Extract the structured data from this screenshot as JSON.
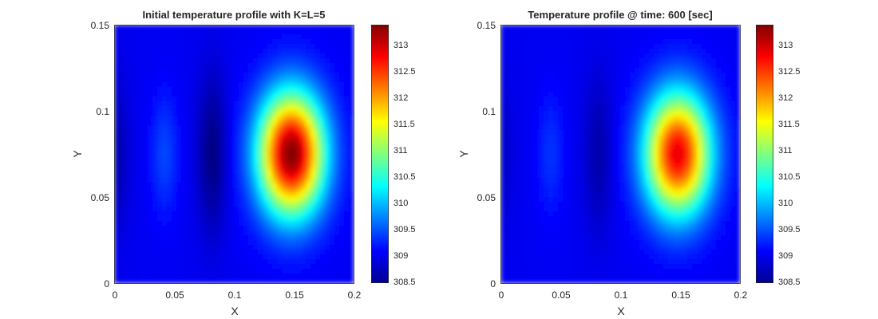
{
  "chart_data": [
    {
      "type": "heatmap",
      "title": "Initial temperature profile with K=L=5",
      "xlabel": "X",
      "ylabel": "Y",
      "xlim": [
        0,
        0.2
      ],
      "ylim": [
        0,
        0.15
      ],
      "x_ticks": [
        "0",
        "0.05",
        "0.1",
        "0.15",
        "0.2"
      ],
      "y_ticks": [
        "0",
        "0.05",
        "0.1",
        "0.15"
      ],
      "colorbar": {
        "colormap": "jet",
        "range": [
          308.4,
          313.3
        ],
        "ticks": [
          "308.5",
          "309",
          "309.5",
          "310",
          "310.5",
          "311",
          "311.5",
          "312",
          "312.5",
          "313"
        ]
      },
      "features": {
        "background_value": 308.95,
        "hot_spot": {
          "x": 0.148,
          "y": 0.075,
          "peak_value": 313.3
        },
        "cold_bands": [
          {
            "x": 0.0,
            "y": 0.075,
            "value": 308.6
          },
          {
            "x": 0.082,
            "y": 0.075,
            "value": 308.4
          }
        ],
        "warm_bands": [
          {
            "x": 0.042,
            "y": 0.075,
            "value": 309.35
          }
        ]
      }
    },
    {
      "type": "heatmap",
      "title": "Temperature profile @ time: 600 [sec]",
      "xlabel": "X",
      "ylabel": "Y",
      "xlim": [
        0,
        0.2
      ],
      "ylim": [
        0,
        0.15
      ],
      "x_ticks": [
        "0",
        "0.05",
        "0.1",
        "0.15",
        "0.2"
      ],
      "y_ticks": [
        "0",
        "0.05",
        "0.1",
        "0.15"
      ],
      "colorbar": {
        "colormap": "jet",
        "range": [
          308.4,
          313.3
        ],
        "ticks": [
          "308.5",
          "309",
          "309.5",
          "310",
          "310.5",
          "311",
          "311.5",
          "312",
          "312.5",
          "313"
        ]
      },
      "features": {
        "background_value": 308.95,
        "hot_spot": {
          "x": 0.148,
          "y": 0.075,
          "peak_value": 312.8
        },
        "cold_bands": [
          {
            "x": 0.0,
            "y": 0.075,
            "value": 308.75
          },
          {
            "x": 0.082,
            "y": 0.075,
            "value": 308.6
          }
        ],
        "warm_bands": [
          {
            "x": 0.042,
            "y": 0.075,
            "value": 309.25
          }
        ]
      }
    }
  ]
}
